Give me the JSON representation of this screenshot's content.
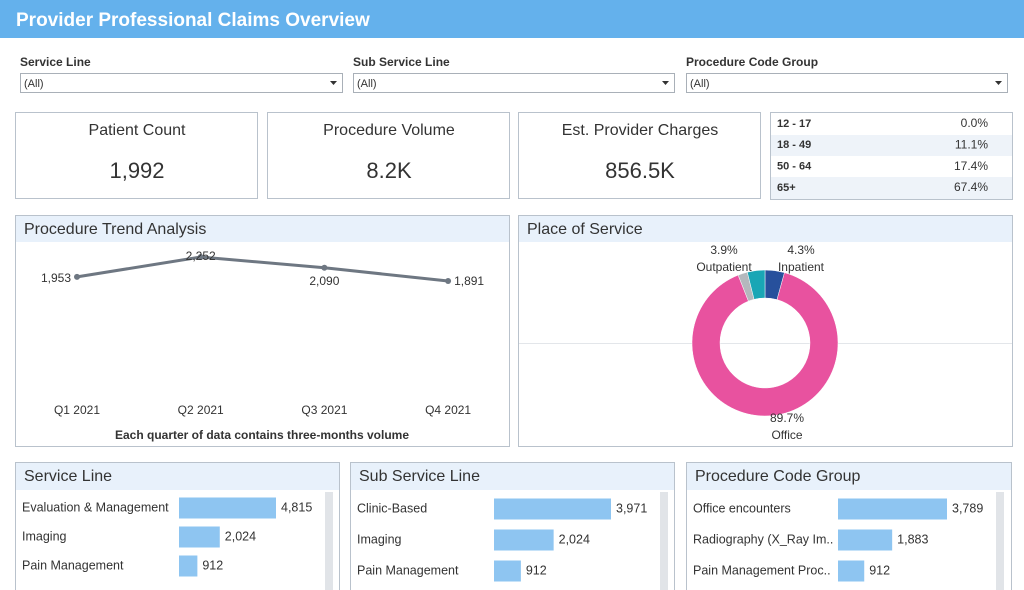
{
  "header": {
    "title": "Provider Professional Claims Overview"
  },
  "filters": [
    {
      "label": "Service Line",
      "value": "(All)"
    },
    {
      "label": "Sub Service Line",
      "value": "(All)"
    },
    {
      "label": "Procedure Code Group",
      "value": "(All)"
    }
  ],
  "kpis": [
    {
      "label": "Patient Count",
      "value": "1,992"
    },
    {
      "label": "Procedure Volume",
      "value": "8.2K"
    },
    {
      "label": "Est. Provider Charges",
      "value": "856.5K"
    }
  ],
  "age_table": {
    "rows": [
      [
        "12 - 17",
        "0.0%"
      ],
      [
        "18 - 49",
        "11.1%"
      ],
      [
        "50 - 64",
        "17.4%"
      ],
      [
        "65+",
        "67.4%"
      ]
    ]
  },
  "chart_data": [
    {
      "type": "line",
      "title": "Procedure Trend Analysis",
      "caption": "Each quarter of data contains three-months volume",
      "categories": [
        "Q1 2021",
        "Q2 2021",
        "Q3 2021",
        "Q4 2021"
      ],
      "values": [
        1953,
        2252,
        2090,
        1891
      ],
      "value_labels": [
        "1,953",
        "2,252",
        "2,090",
        "1,891"
      ],
      "color": "#6e7782"
    },
    {
      "type": "pie",
      "title": "Place of Service",
      "categories": [
        "Inpatient",
        "Office",
        null,
        "Outpatient"
      ],
      "values": [
        4.3,
        89.7,
        2.1,
        3.9
      ],
      "value_labels": [
        "4.3%",
        "89.7%",
        null,
        "3.9%"
      ],
      "colors": [
        "#27509c",
        "#e8529f",
        "#b4b8bd",
        "#19a6b5"
      ]
    },
    {
      "type": "bar",
      "title": "Service Line",
      "categories": [
        "Evaluation & Management",
        "Imaging",
        "Pain Management"
      ],
      "values": [
        4815,
        2024,
        912
      ],
      "value_labels": [
        "4,815",
        "2,024",
        "912"
      ],
      "color": "#8ec5f1"
    },
    {
      "type": "bar",
      "title": "Sub Service Line",
      "categories": [
        "Clinic-Based",
        "Imaging",
        "Pain Management"
      ],
      "values": [
        3971,
        2024,
        912
      ],
      "value_labels": [
        "3,971",
        "2,024",
        "912"
      ],
      "color": "#8ec5f1"
    },
    {
      "type": "bar",
      "title": "Procedure Code Group",
      "categories": [
        "Office encounters",
        "Radiography (X_Ray Im..",
        "Pain Management Proc.."
      ],
      "values": [
        3789,
        1883,
        912
      ],
      "value_labels": [
        "3,789",
        "1,883",
        "912"
      ],
      "color": "#8ec5f1"
    }
  ]
}
